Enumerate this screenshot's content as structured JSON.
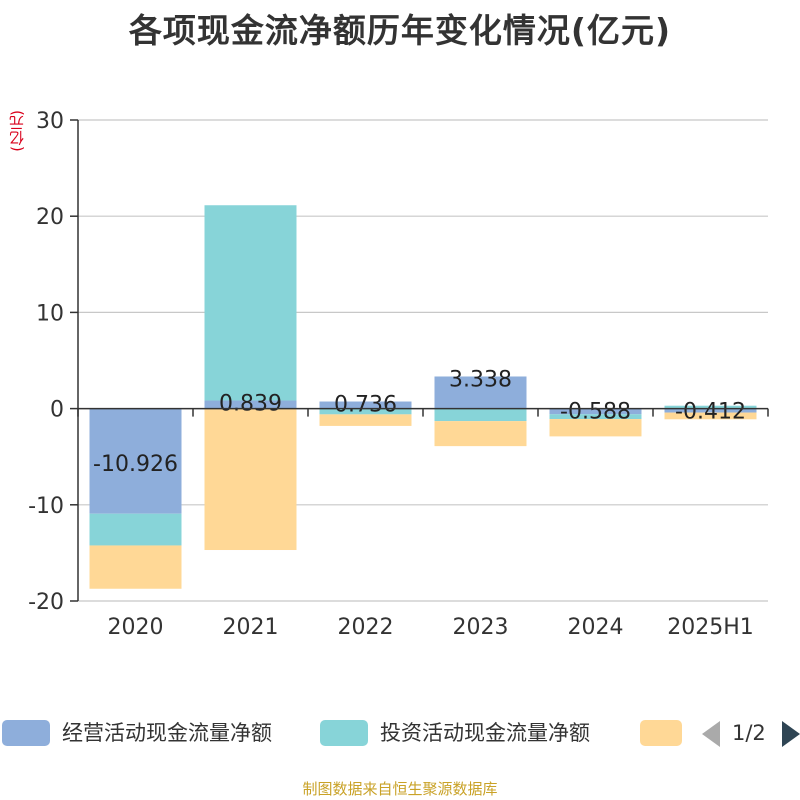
{
  "chart_data": {
    "type": "bar",
    "stacked": true,
    "title": "各项现金流净额历年变化情况(亿元)",
    "ylabel": "(亿元)",
    "xlabel": "",
    "ylim": [
      -20,
      30
    ],
    "yticks": [
      30,
      20,
      10,
      0,
      -10,
      -20
    ],
    "grid": true,
    "legend_position": "bottom",
    "categories": [
      "2020",
      "2021",
      "2022",
      "2023",
      "2024",
      "2025H1"
    ],
    "series": [
      {
        "name": "经营活动现金流量净额",
        "color": "#8eaedb",
        "values": [
          -10.926,
          0.839,
          0.736,
          3.338,
          -0.588,
          -0.412
        ],
        "labels": [
          "-10.926",
          "0.839",
          "0.736",
          "3.338",
          "-0.588",
          "-0.412"
        ]
      },
      {
        "name": "投资活动现金流量净额",
        "color": "#87d4d8",
        "values": [
          -3.3,
          20.3,
          -0.6,
          -1.3,
          -0.5,
          0.3
        ]
      },
      {
        "name": "",
        "color": "#ffd896",
        "values": [
          -4.5,
          -14.7,
          -1.2,
          -2.6,
          -1.8,
          -0.7
        ]
      }
    ]
  },
  "legend": {
    "page_indicator": "1/2"
  },
  "source": "制图数据来自恒生聚源数据库"
}
